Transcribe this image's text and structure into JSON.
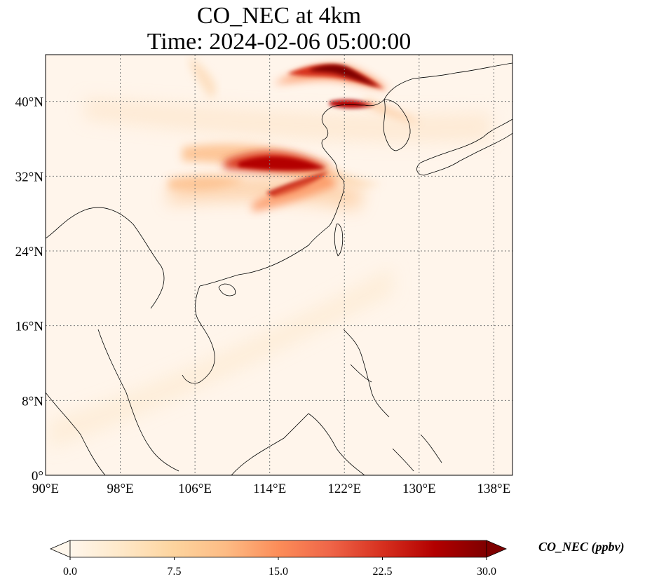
{
  "title": {
    "line1": "CO_NEC at 4km",
    "line2": "Time: 2024-02-06 05:00:00"
  },
  "map": {
    "projection": "PlateCarree",
    "lon_range": [
      90,
      140
    ],
    "lat_range": [
      0,
      45
    ],
    "x_ticks": [
      {
        "value": 90,
        "label": "90°E"
      },
      {
        "value": 98,
        "label": "98°E"
      },
      {
        "value": 106,
        "label": "106°E"
      },
      {
        "value": 114,
        "label": "114°E"
      },
      {
        "value": 122,
        "label": "122°E"
      },
      {
        "value": 130,
        "label": "130°E"
      },
      {
        "value": 138,
        "label": "138°E"
      }
    ],
    "y_ticks": [
      {
        "value": 0,
        "label": "0°"
      },
      {
        "value": 8,
        "label": "8°N"
      },
      {
        "value": 16,
        "label": "16°N"
      },
      {
        "value": 24,
        "label": "24°N"
      },
      {
        "value": 32,
        "label": "32°N"
      },
      {
        "value": 40,
        "label": "40°N"
      }
    ],
    "gridlines": true,
    "gridline_style": "dotted",
    "background_color": "#fff5eb",
    "coastline_color": "#000000"
  },
  "colorbar": {
    "label": "CO_NEC (ppbv)",
    "cmap": "OrRd",
    "range": [
      0,
      30
    ],
    "extend": "both",
    "ticks": [
      "0.0",
      "7.5",
      "15.0",
      "22.5",
      "30.0"
    ],
    "colors": [
      "#fff7ec",
      "#fee8c8",
      "#fdd49e",
      "#fdbb84",
      "#fc8d59",
      "#ef6548",
      "#d7301f",
      "#b30000",
      "#7f0000"
    ]
  }
}
